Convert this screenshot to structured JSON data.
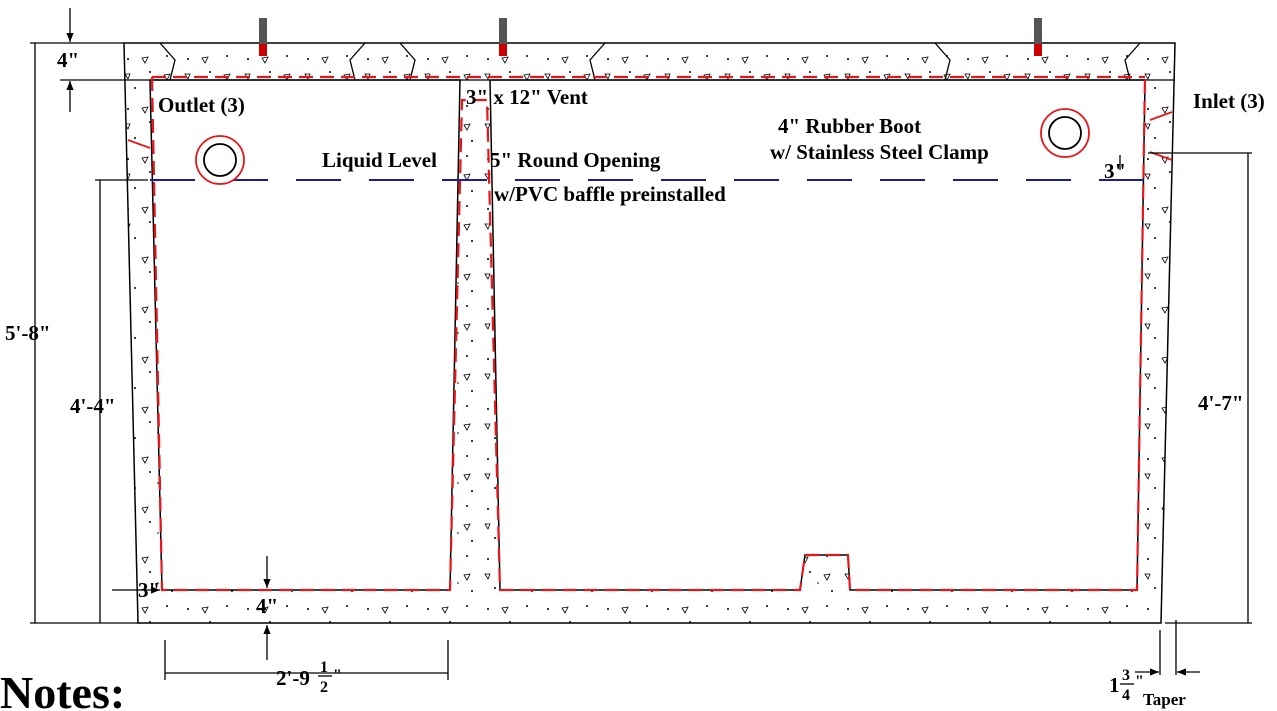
{
  "labels": {
    "outlet": "Outlet (3)",
    "vent": "3\" x 12\" Vent",
    "inlet": "Inlet (3)",
    "boot": [
      "4\" Rubber Boot",
      "w/ Stainless Steel Clamp"
    ],
    "liquid_level": "Liquid Level",
    "opening": [
      "5\" Round Opening",
      "w/PVC baffle preinstalled"
    ]
  },
  "dimensions": {
    "top_slab": "4\"",
    "overall_height": "5'-8\"",
    "liquid_height": "4'-4\"",
    "inlet_height": "4'-7\"",
    "inlet_drop": "3\"",
    "wall": "3\"",
    "floor": "4\"",
    "baffle_offset": {
      "whole": "2'-9",
      "num": "1",
      "den": "2",
      "unit": "\""
    },
    "taper": {
      "whole": "1",
      "num": "3",
      "den": "4",
      "unit": "\"",
      "note": "Taper"
    }
  },
  "notes_heading": "Notes:"
}
